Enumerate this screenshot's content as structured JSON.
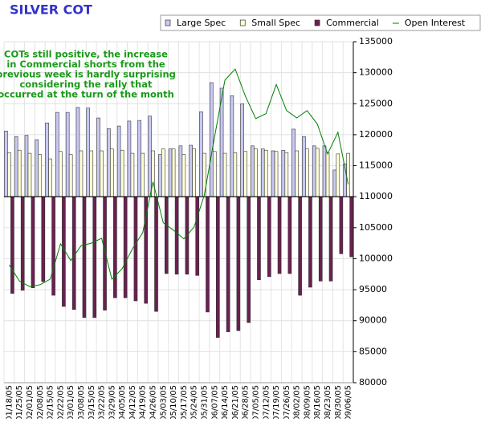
{
  "chart_data": {
    "type": "bar",
    "title": "SILVER COT",
    "annotation": [
      "COTs still positive, the increase",
      "in Commercial shorts from the",
      "previous week is hardly surprising",
      "considering the rally that",
      "occurred at the turn of the month"
    ],
    "categories": [
      "01/18/05",
      "01/25/05",
      "02/01/05",
      "02/08/05",
      "02/15/05",
      "02/22/05",
      "03/01/05",
      "03/08/05",
      "03/15/05",
      "03/22/05",
      "03/29/05",
      "04/05/05",
      "04/12/05",
      "04/19/05",
      "04/26/05",
      "05/03/05",
      "05/10/05",
      "05/17/05",
      "05/24/05",
      "05/31/05",
      "06/07/05",
      "06/14/05",
      "06/21/05",
      "06/28/05",
      "07/05/05",
      "07/12/05",
      "07/19/05",
      "07/26/05",
      "08/02/05",
      "08/09/05",
      "08/16/05",
      "08/23/05",
      "08/30/05",
      "09/06/05"
    ],
    "baseline": 110000,
    "series": [
      {
        "name": "Large Spec",
        "mark": "bar",
        "color": "#c8c8f4",
        "values": [
          120600,
          119700,
          119900,
          119200,
          121900,
          123600,
          123600,
          124400,
          124300,
          122700,
          121000,
          121400,
          122200,
          122300,
          123000,
          116800,
          117700,
          118200,
          118300,
          123700,
          128400,
          127500,
          126300,
          125000,
          118200,
          117700,
          117400,
          117500,
          120900,
          119700,
          118200,
          118200,
          114300,
          115300
        ]
      },
      {
        "name": "Small Spec",
        "mark": "bar",
        "color": "#ffffd8",
        "values": [
          117100,
          117500,
          117000,
          116800,
          116100,
          117300,
          116800,
          117400,
          117400,
          117400,
          117700,
          117500,
          117000,
          117000,
          117400,
          117700,
          117700,
          116800,
          117700,
          117000,
          117300,
          117000,
          117100,
          117300,
          117700,
          117500,
          117300,
          117100,
          117400,
          117700,
          117800,
          117100,
          116900,
          117000
        ]
      },
      {
        "name": "Commercial",
        "mark": "bar",
        "color": "#6a2050",
        "values": [
          94400,
          94900,
          95300,
          96300,
          94100,
          92300,
          91800,
          90500,
          90500,
          91700,
          93700,
          93700,
          93200,
          92800,
          91500,
          97600,
          97500,
          97500,
          97300,
          91400,
          87300,
          88200,
          88400,
          89700,
          96600,
          97100,
          97600,
          97600,
          94100,
          95400,
          96400,
          96400,
          100800,
          100300
        ]
      },
      {
        "name": "Open Interest",
        "mark": "line",
        "color": "#008000",
        "values": [
          99000,
          96400,
          95500,
          95800,
          96700,
          102400,
          99700,
          102100,
          102500,
          103300,
          96700,
          98400,
          101600,
          104200,
          112400,
          105800,
          104600,
          103200,
          105100,
          110300,
          119700,
          128800,
          130600,
          126200,
          122600,
          123400,
          128100,
          123900,
          122700,
          123900,
          121700,
          116900,
          120400,
          112000
        ]
      }
    ],
    "ylim": [
      80000,
      135000
    ],
    "yticks": [
      80000,
      85000,
      90000,
      95000,
      100000,
      105000,
      110000,
      115000,
      120000,
      125000,
      130000,
      135000
    ],
    "grid": true
  }
}
